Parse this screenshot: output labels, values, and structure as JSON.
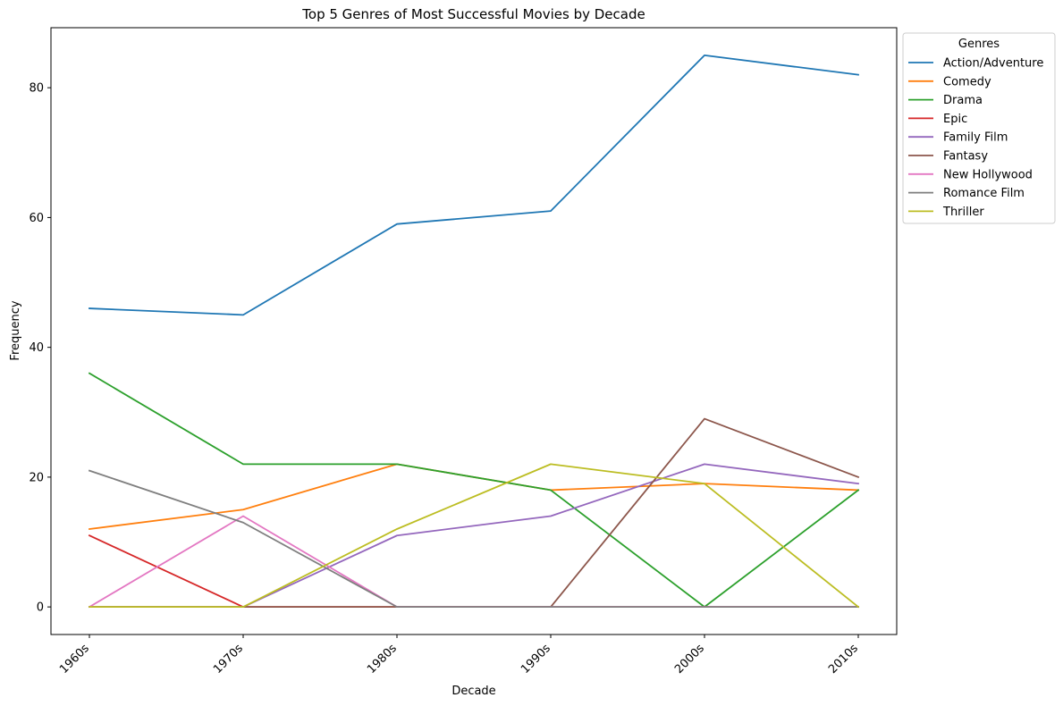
{
  "chart_data": {
    "type": "line",
    "title": "Top 5 Genres of Most Successful Movies by Decade",
    "xlabel": "Decade",
    "ylabel": "Frequency",
    "categories": [
      "1960s",
      "1970s",
      "1980s",
      "1990s",
      "2000s",
      "2010s"
    ],
    "ylim": [
      -4.25,
      89.25
    ],
    "yticks": [
      0,
      20,
      40,
      60,
      80
    ],
    "grid": false,
    "legend": {
      "title": "Genres",
      "placement": "outside-top-right"
    },
    "series": [
      {
        "name": "Action/Adventure",
        "color": "#1f77b4",
        "values": [
          46,
          45,
          59,
          61,
          85,
          82
        ]
      },
      {
        "name": "Comedy",
        "color": "#ff7f0e",
        "values": [
          12,
          15,
          22,
          18,
          19,
          18
        ]
      },
      {
        "name": "Drama",
        "color": "#2ca02c",
        "values": [
          36,
          22,
          22,
          18,
          0,
          18
        ]
      },
      {
        "name": "Epic",
        "color": "#d62728",
        "values": [
          11,
          0,
          0,
          0,
          0,
          0
        ]
      },
      {
        "name": "Family Film",
        "color": "#9467bd",
        "values": [
          0,
          0,
          11,
          14,
          22,
          19
        ]
      },
      {
        "name": "Fantasy",
        "color": "#8c564b",
        "values": [
          0,
          0,
          0,
          0,
          29,
          20
        ]
      },
      {
        "name": "New Hollywood",
        "color": "#e377c2",
        "values": [
          0,
          14,
          0,
          0,
          0,
          0
        ]
      },
      {
        "name": "Romance Film",
        "color": "#7f7f7f",
        "values": [
          21,
          13,
          0,
          0,
          0,
          0
        ]
      },
      {
        "name": "Thriller",
        "color": "#bcbd22",
        "values": [
          0,
          0,
          12,
          22,
          19,
          0
        ]
      }
    ]
  }
}
